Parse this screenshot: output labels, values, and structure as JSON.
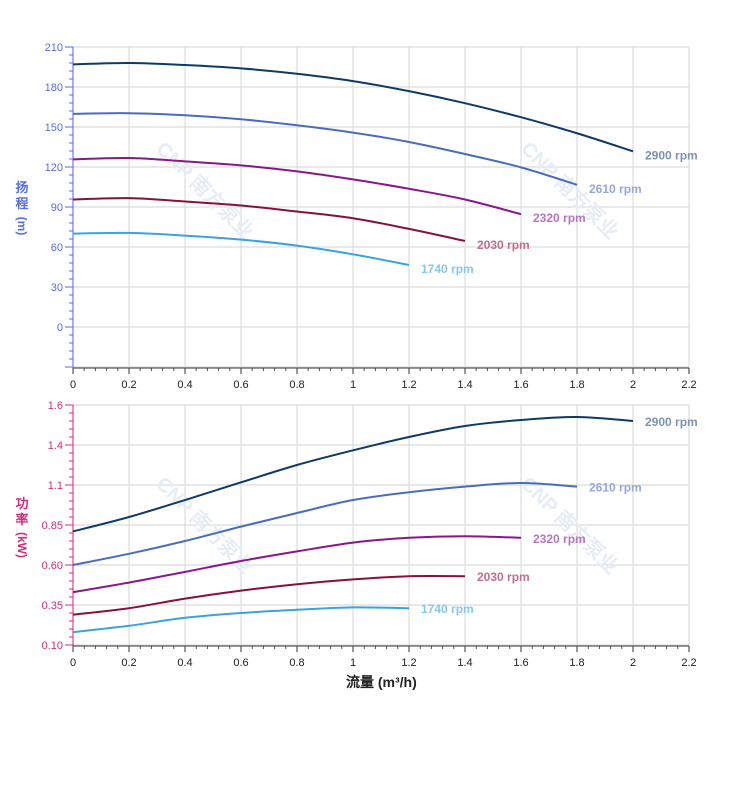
{
  "watermark": "CNP 南方泵业",
  "chart_data": [
    {
      "type": "line",
      "ylabel_chars": [
        "扬",
        "程"
      ],
      "ylabel_unit": "(m)",
      "axis_color": "#5a6de0",
      "x_ticks": [
        "0",
        "0.2",
        "0.4",
        "0.6",
        "0.8",
        "1",
        "1.2",
        "1.4",
        "1.6",
        "1.8",
        "2",
        "2.2"
      ],
      "xlim": [
        0,
        2.2
      ],
      "y_ticks": [
        "210",
        "180",
        "150",
        "120",
        "90",
        "60",
        "30",
        "0"
      ],
      "ylim": [
        -30,
        210
      ],
      "grid": true,
      "series": [
        {
          "name": "2900 rpm",
          "color": "#0e3a66",
          "label_color": "#7d93ae",
          "x": [
            0,
            0.2,
            0.4,
            0.6,
            0.8,
            1.0,
            1.2,
            1.4,
            1.6,
            1.8,
            2.0
          ],
          "y": [
            197,
            198,
            196.5,
            194,
            190,
            184.5,
            177,
            168,
            157.5,
            145.5,
            132
          ]
        },
        {
          "name": "2610 rpm",
          "color": "#4a6cc0",
          "label_color": "#95a8da",
          "x": [
            0,
            0.2,
            0.4,
            0.6,
            0.8,
            1.0,
            1.2,
            1.4,
            1.6,
            1.8
          ],
          "y": [
            160,
            160.5,
            159,
            156,
            151.5,
            146,
            139,
            130,
            120,
            107
          ]
        },
        {
          "name": "2320 rpm",
          "color": "#8a168a",
          "label_color": "#b576c0",
          "x": [
            0,
            0.2,
            0.4,
            0.6,
            0.8,
            1.0,
            1.2,
            1.4,
            1.6
          ],
          "y": [
            126,
            127,
            124.5,
            121.5,
            117,
            111,
            104,
            96,
            85
          ]
        },
        {
          "name": "2030 rpm",
          "color": "#8a1038",
          "label_color": "#c07088",
          "x": [
            0,
            0.2,
            0.4,
            0.6,
            0.8,
            1.0,
            1.2,
            1.4
          ],
          "y": [
            96,
            97,
            94.5,
            91.5,
            87,
            82,
            74,
            65
          ]
        },
        {
          "name": "1740 rpm",
          "color": "#3aa2e0",
          "label_color": "#88c6ec",
          "x": [
            0,
            0.2,
            0.4,
            0.6,
            0.8,
            1.0,
            1.2
          ],
          "y": [
            70.5,
            71,
            69,
            66,
            61.5,
            55,
            47
          ]
        }
      ]
    },
    {
      "type": "line",
      "ylabel_chars": [
        "功",
        "率"
      ],
      "ylabel_unit": "(kW)",
      "axis_color": "#d0307a",
      "x_ticks": [
        "0",
        "0.2",
        "0.4",
        "0.6",
        "0.8",
        "1",
        "1.2",
        "1.4",
        "1.6",
        "1.8",
        "2",
        "2.2"
      ],
      "xlim": [
        0,
        2.2
      ],
      "xlabel": "流量 (m³/h)",
      "y_ticks": [
        "1.6",
        "1.4",
        "1.1",
        "0.85",
        "0.60",
        "0.35",
        "0.10"
      ],
      "grid": true,
      "series": [
        {
          "name": "2900 rpm",
          "color": "#0e3a66",
          "label_color": "#7d93ae",
          "x": [
            0,
            0.2,
            0.4,
            0.6,
            0.8,
            1.0,
            1.2,
            1.4,
            1.6,
            1.8,
            2.0
          ],
          "y": [
            0.81,
            0.9,
            1.006,
            1.12,
            1.25,
            1.36,
            1.44,
            1.495,
            1.525,
            1.54,
            1.52
          ]
        },
        {
          "name": "2610 rpm",
          "color": "#4a6cc0",
          "label_color": "#95a8da",
          "x": [
            0,
            0.2,
            0.4,
            0.6,
            0.8,
            1.0,
            1.2,
            1.4,
            1.6,
            1.8
          ],
          "y": [
            0.6,
            0.67,
            0.75,
            0.84,
            0.925,
            1.006,
            1.055,
            1.09,
            1.115,
            1.09
          ]
        },
        {
          "name": "2320 rpm",
          "color": "#8a168a",
          "label_color": "#b576c0",
          "x": [
            0,
            0.2,
            0.4,
            0.6,
            0.8,
            1.0,
            1.2,
            1.4,
            1.6
          ],
          "y": [
            0.43,
            0.49,
            0.557,
            0.625,
            0.685,
            0.74,
            0.77,
            0.78,
            0.77
          ]
        },
        {
          "name": "2030 rpm",
          "color": "#8a1038",
          "label_color": "#c07088",
          "x": [
            0,
            0.2,
            0.4,
            0.6,
            0.8,
            1.0,
            1.2,
            1.4
          ],
          "y": [
            0.29,
            0.33,
            0.39,
            0.44,
            0.48,
            0.51,
            0.53,
            0.53
          ]
        },
        {
          "name": "1740 rpm",
          "color": "#3aa2e0",
          "label_color": "#88c6ec",
          "x": [
            0,
            0.2,
            0.4,
            0.6,
            0.8,
            1.0,
            1.2
          ],
          "y": [
            0.18,
            0.22,
            0.27,
            0.3,
            0.32,
            0.335,
            0.33
          ]
        }
      ]
    }
  ]
}
